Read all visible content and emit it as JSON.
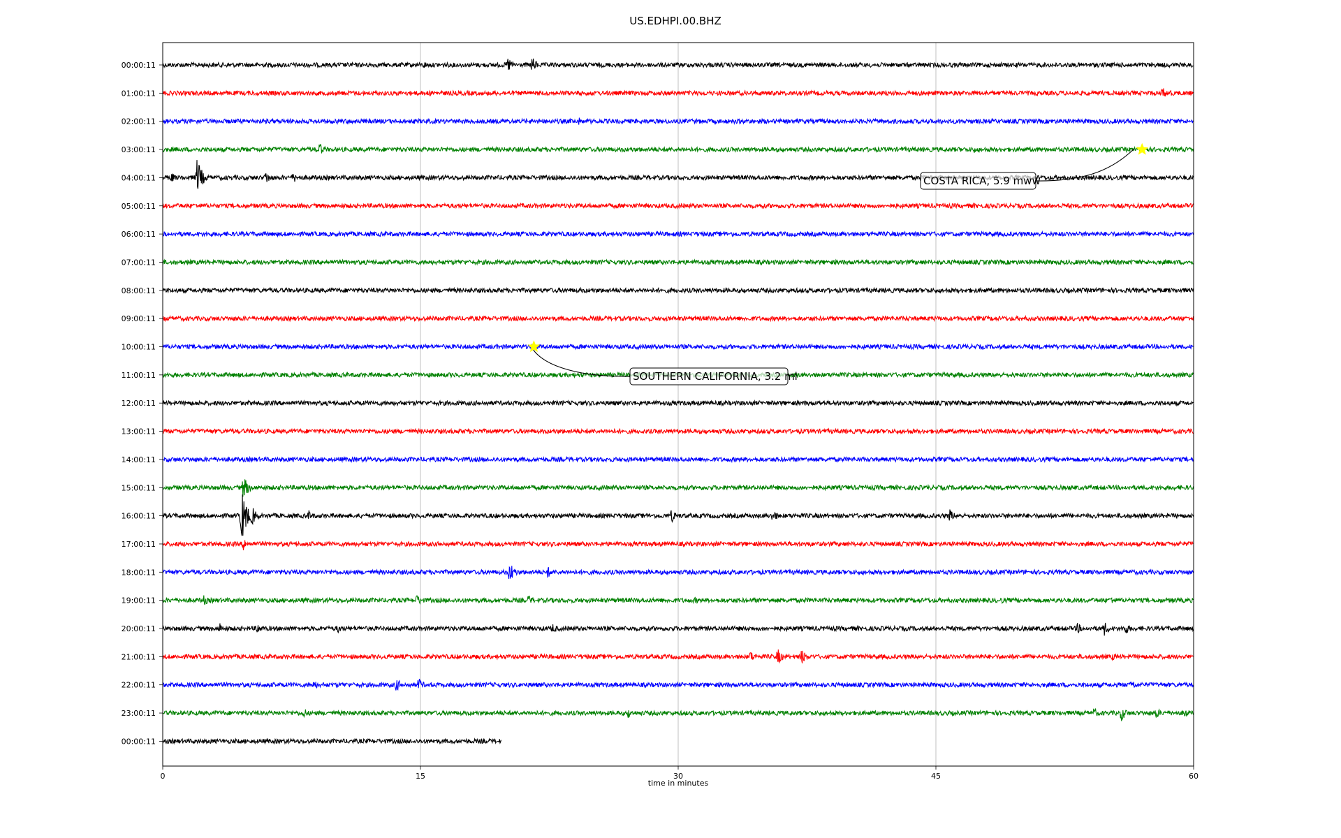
{
  "chart_data": {
    "type": "line",
    "title": "US.EDHPI.00.BHZ",
    "xlabel": "time in minutes",
    "ylabel": "",
    "xlim": [
      0,
      60
    ],
    "x_ticks": [
      0,
      15,
      30,
      45,
      60
    ],
    "x_tick_labels": [
      "0",
      "15",
      "30",
      "45",
      "60"
    ],
    "grid": "vertical",
    "trace_colors": [
      "#000000",
      "#ff0000",
      "#0000ff",
      "#008000"
    ],
    "series": [
      {
        "label": "00:00:11",
        "duration_min": 60,
        "events": [
          {
            "t": 15.2,
            "amp": 6
          },
          {
            "t": 20.1,
            "amp": 12
          },
          {
            "t": 21.5,
            "amp": 12
          }
        ]
      },
      {
        "label": "01:00:11",
        "duration_min": 60,
        "events": [
          {
            "t": 58.2,
            "amp": 9
          },
          {
            "t": 58.6,
            "amp": 6
          }
        ]
      },
      {
        "label": "02:00:11",
        "duration_min": 60,
        "events": [
          {
            "t": 10.2,
            "amp": 5
          },
          {
            "t": 24.2,
            "amp": 6
          }
        ]
      },
      {
        "label": "03:00:11",
        "duration_min": 60,
        "events": [
          {
            "t": 9.1,
            "amp": 11
          },
          {
            "t": 47.2,
            "amp": 6
          },
          {
            "t": 57.0,
            "amp": 4
          }
        ]
      },
      {
        "label": "04:00:11",
        "duration_min": 60,
        "events": [
          {
            "t": 0.5,
            "amp": 8
          },
          {
            "t": 2.0,
            "amp": 28
          },
          {
            "t": 6.0,
            "amp": 10
          },
          {
            "t": 7.6,
            "amp": 8
          },
          {
            "t": 34.5,
            "amp": 4
          }
        ]
      },
      {
        "label": "05:00:11",
        "duration_min": 60,
        "events": [
          {
            "t": 2.9,
            "amp": 4
          }
        ]
      },
      {
        "label": "06:00:11",
        "duration_min": 60,
        "events": []
      },
      {
        "label": "07:00:11",
        "duration_min": 60,
        "events": [
          {
            "t": 33.8,
            "amp": 4
          }
        ]
      },
      {
        "label": "08:00:11",
        "duration_min": 60,
        "events": []
      },
      {
        "label": "09:00:11",
        "duration_min": 60,
        "events": []
      },
      {
        "label": "10:00:11",
        "duration_min": 60,
        "events": []
      },
      {
        "label": "11:00:11",
        "duration_min": 60,
        "events": []
      },
      {
        "label": "12:00:11",
        "duration_min": 60,
        "events": []
      },
      {
        "label": "13:00:11",
        "duration_min": 60,
        "events": []
      },
      {
        "label": "14:00:11",
        "duration_min": 60,
        "events": []
      },
      {
        "label": "15:00:11",
        "duration_min": 60,
        "events": [
          {
            "t": 4.7,
            "amp": 18
          },
          {
            "t": 12.8,
            "amp": 4
          }
        ]
      },
      {
        "label": "16:00:11",
        "duration_min": 60,
        "events": [
          {
            "t": 4.6,
            "amp": 40
          },
          {
            "t": 5.2,
            "amp": 14
          },
          {
            "t": 8.5,
            "amp": 8
          },
          {
            "t": 29.6,
            "amp": 10
          },
          {
            "t": 35.5,
            "amp": 10
          },
          {
            "t": 45.8,
            "amp": 10
          }
        ]
      },
      {
        "label": "17:00:11",
        "duration_min": 60,
        "events": [
          {
            "t": 4.7,
            "amp": 10
          }
        ]
      },
      {
        "label": "18:00:11",
        "duration_min": 60,
        "events": [
          {
            "t": 20.2,
            "amp": 16
          },
          {
            "t": 22.4,
            "amp": 9
          },
          {
            "t": 26.0,
            "amp": 4
          }
        ]
      },
      {
        "label": "19:00:11",
        "duration_min": 60,
        "events": [
          {
            "t": 2.4,
            "amp": 8
          },
          {
            "t": 14.8,
            "amp": 9
          },
          {
            "t": 21.3,
            "amp": 8
          },
          {
            "t": 31.0,
            "amp": 5
          },
          {
            "t": 48.8,
            "amp": 5
          },
          {
            "t": 55.2,
            "amp": 6
          },
          {
            "t": 58.8,
            "amp": 5
          }
        ]
      },
      {
        "label": "20:00:11",
        "duration_min": 60,
        "events": [
          {
            "t": 3.3,
            "amp": 9
          },
          {
            "t": 5.5,
            "amp": 9
          },
          {
            "t": 10.2,
            "amp": 7
          },
          {
            "t": 22.7,
            "amp": 8
          },
          {
            "t": 53.2,
            "amp": 9
          },
          {
            "t": 54.8,
            "amp": 11
          },
          {
            "t": 56.0,
            "amp": 10
          }
        ]
      },
      {
        "label": "21:00:11",
        "duration_min": 60,
        "events": [
          {
            "t": 34.2,
            "amp": 9
          },
          {
            "t": 35.8,
            "amp": 12
          },
          {
            "t": 37.2,
            "amp": 12
          },
          {
            "t": 55.3,
            "amp": 6
          }
        ]
      },
      {
        "label": "22:00:11",
        "duration_min": 60,
        "events": [
          {
            "t": 8.8,
            "amp": 8
          },
          {
            "t": 13.6,
            "amp": 10
          },
          {
            "t": 14.9,
            "amp": 10
          },
          {
            "t": 56.4,
            "amp": 9
          }
        ]
      },
      {
        "label": "23:00:11",
        "duration_min": 60,
        "events": [
          {
            "t": 8.2,
            "amp": 8
          },
          {
            "t": 27.1,
            "amp": 8
          },
          {
            "t": 54.2,
            "amp": 8
          },
          {
            "t": 55.8,
            "amp": 12
          },
          {
            "t": 57.8,
            "amp": 9
          },
          {
            "t": 59.5,
            "amp": 8
          }
        ]
      },
      {
        "label": "00:00:11",
        "duration_min": 19.7,
        "events": []
      }
    ],
    "annotations": [
      {
        "text": "COSTA RICA, 5.9 mww",
        "row": 3,
        "t": 57.0,
        "marker": "star",
        "marker_color": "#ffff00"
      },
      {
        "text": "SOUTHERN CALIFORNIA, 3.2 ml",
        "row": 10,
        "t": 21.6,
        "marker": "star",
        "marker_color": "#ffff00"
      }
    ]
  }
}
